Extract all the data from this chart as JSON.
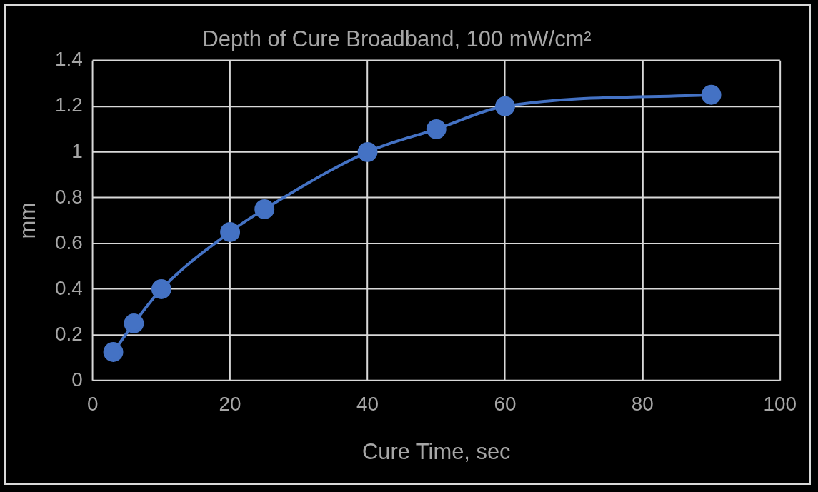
{
  "chart_data": {
    "type": "line",
    "title": "Depth of Cure Broadband, 100 mW/cm²",
    "xlabel": "Cure Time, sec",
    "ylabel": "mm",
    "x": [
      3,
      6,
      10,
      20,
      25,
      40,
      50,
      60,
      90
    ],
    "series": [
      {
        "color": "#4472c4",
        "values": [
          0.125,
          0.25,
          0.4,
          0.65,
          0.75,
          1.0,
          1.1,
          1.2,
          1.25
        ]
      }
    ],
    "xlim": [
      0,
      100
    ],
    "xticks": [
      0,
      20,
      40,
      60,
      80,
      100
    ],
    "ylim": [
      0,
      1.4
    ],
    "yticks": [
      0,
      0.2,
      0.4,
      0.6,
      0.8,
      1,
      1.2,
      1.4
    ],
    "grid": true,
    "legend": false,
    "marker": "circle",
    "line_style": "solid"
  }
}
